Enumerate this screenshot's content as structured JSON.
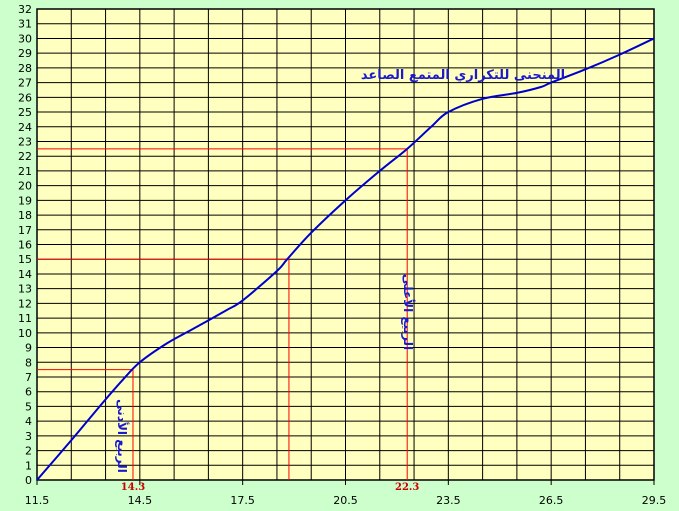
{
  "chart_data": {
    "type": "line",
    "title": "",
    "xlabel": "",
    "ylabel": "",
    "xlim": [
      11.5,
      29.5
    ],
    "ylim": [
      0,
      32
    ],
    "x_ticks": [
      "11.5",
      "14.5",
      "17.5",
      "20.5",
      "23.5",
      "26.5",
      "29.5"
    ],
    "y_ticks": [
      "0",
      "1",
      "2",
      "3",
      "4",
      "5",
      "6",
      "7",
      "8",
      "9",
      "10",
      "11",
      "12",
      "13",
      "14",
      "15",
      "16",
      "17",
      "18",
      "19",
      "20",
      "21",
      "22",
      "23",
      "24",
      "25",
      "26",
      "27",
      "28",
      "29",
      "30",
      "31",
      "32"
    ],
    "grid": true,
    "series": [
      {
        "name": "المنحنى للتكراري المتمع الصاعد",
        "color": "#0000cc",
        "x": [
          11.5,
          12.5,
          13.4,
          14.0,
          14.5,
          15.3,
          16.0,
          17.0,
          17.5,
          18.5,
          18.8,
          19.5,
          20.5,
          21.5,
          22.3,
          23.0,
          23.5,
          24.5,
          25.5,
          26.2,
          26.5,
          27.5,
          28.5,
          29.5
        ],
        "y": [
          0,
          2.7,
          5.2,
          6.8,
          8.0,
          9.3,
          10.2,
          11.5,
          12.2,
          14.2,
          15.0,
          16.8,
          19.0,
          21.0,
          22.5,
          24.0,
          25.0,
          25.9,
          26.3,
          26.7,
          27.0,
          27.9,
          28.9,
          30.0
        ]
      }
    ],
    "reference_lines": [
      {
        "x": 14.3,
        "y": 7.5,
        "color": "#ff0000"
      },
      {
        "x": 18.85,
        "y": 15,
        "color": "#ff0000"
      },
      {
        "x": 22.3,
        "y": 22.5,
        "color": "#ff0000"
      }
    ],
    "markers": [
      {
        "x": 14.3,
        "label": "14.3"
      },
      {
        "x": 22.3,
        "label": "22.3"
      }
    ],
    "annotations": {
      "curve_label": "المنحنى للتكراري المتمع الصاعد",
      "lower_quartile": "الربيع الأدنى",
      "upper_quartile": "الربيع الأعلى"
    }
  }
}
